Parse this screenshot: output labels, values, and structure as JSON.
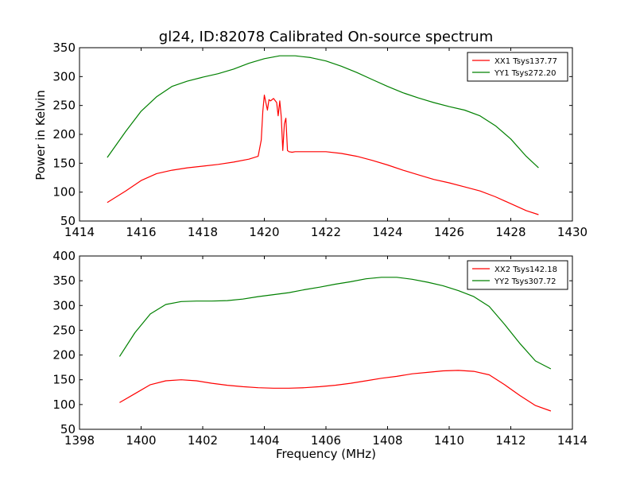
{
  "title": "gl24, ID:82078 Calibrated On-source spectrum",
  "xlabel": "Frequency (MHz)",
  "ylabel": "Power in Kelvin",
  "chart_data": [
    {
      "type": "line",
      "xlim": [
        1414,
        1430
      ],
      "ylim": [
        50,
        350
      ],
      "xticks": [
        1414,
        1416,
        1418,
        1420,
        1422,
        1424,
        1426,
        1428,
        1430
      ],
      "yticks": [
        50,
        100,
        150,
        200,
        250,
        300,
        350
      ],
      "legend_position": "top-right",
      "series": [
        {
          "name": "XX1 Tsys137.77",
          "color": "#ff0000",
          "x": [
            1414.9,
            1415.5,
            1416.0,
            1416.5,
            1417.0,
            1417.5,
            1418.0,
            1418.5,
            1419.0,
            1419.5,
            1419.8,
            1419.9,
            1419.95,
            1420.0,
            1420.05,
            1420.1,
            1420.15,
            1420.2,
            1420.3,
            1420.4,
            1420.45,
            1420.5,
            1420.55,
            1420.6,
            1420.65,
            1420.7,
            1420.75,
            1420.8,
            1420.9,
            1421.0,
            1421.5,
            1422.0,
            1422.5,
            1423.0,
            1423.5,
            1424.0,
            1424.5,
            1425.0,
            1425.5,
            1426.0,
            1426.5,
            1427.0,
            1427.5,
            1428.0,
            1428.5,
            1428.9
          ],
          "y": [
            82,
            102,
            120,
            132,
            138,
            142,
            145,
            148,
            152,
            157,
            162,
            190,
            240,
            268,
            255,
            242,
            260,
            258,
            262,
            255,
            232,
            258,
            230,
            172,
            218,
            228,
            172,
            170,
            169,
            170,
            170,
            170,
            167,
            162,
            155,
            147,
            138,
            130,
            122,
            116,
            109,
            102,
            92,
            80,
            68,
            61
          ]
        },
        {
          "name": "YY1 Tsys272.20",
          "color": "#008000",
          "x": [
            1414.9,
            1415.5,
            1416.0,
            1416.5,
            1417.0,
            1417.5,
            1418.0,
            1418.5,
            1419.0,
            1419.5,
            1420.0,
            1420.5,
            1421.0,
            1421.5,
            1422.0,
            1422.5,
            1423.0,
            1423.5,
            1424.0,
            1424.5,
            1425.0,
            1425.5,
            1426.0,
            1426.5,
            1427.0,
            1427.5,
            1428.0,
            1428.5,
            1428.9
          ],
          "y": [
            160,
            205,
            240,
            265,
            283,
            292,
            299,
            305,
            313,
            323,
            331,
            336,
            336,
            333,
            327,
            318,
            307,
            295,
            283,
            272,
            263,
            255,
            248,
            242,
            232,
            215,
            192,
            162,
            142
          ]
        }
      ]
    },
    {
      "type": "line",
      "xlim": [
        1398,
        1414
      ],
      "ylim": [
        50,
        400
      ],
      "xticks": [
        1398,
        1400,
        1402,
        1404,
        1406,
        1408,
        1410,
        1412,
        1414
      ],
      "yticks": [
        50,
        100,
        150,
        200,
        250,
        300,
        350,
        400
      ],
      "legend_position": "top-right",
      "series": [
        {
          "name": "XX2 Tsys142.18",
          "color": "#ff0000",
          "x": [
            1399.3,
            1399.8,
            1400.3,
            1400.8,
            1401.3,
            1401.8,
            1402.3,
            1402.8,
            1403.3,
            1403.8,
            1404.3,
            1404.8,
            1405.3,
            1405.8,
            1406.3,
            1406.8,
            1407.3,
            1407.8,
            1408.3,
            1408.8,
            1409.3,
            1409.8,
            1410.3,
            1410.8,
            1411.3,
            1411.8,
            1412.3,
            1412.8,
            1413.3
          ],
          "y": [
            104,
            122,
            140,
            148,
            150,
            148,
            143,
            139,
            136,
            134,
            133,
            133,
            134,
            136,
            139,
            143,
            148,
            153,
            157,
            162,
            165,
            168,
            169,
            167,
            160,
            140,
            118,
            98,
            87
          ]
        },
        {
          "name": "YY2 Tsys307.72",
          "color": "#008000",
          "x": [
            1399.3,
            1399.8,
            1400.3,
            1400.8,
            1401.3,
            1401.8,
            1402.3,
            1402.8,
            1403.3,
            1403.8,
            1404.3,
            1404.8,
            1405.3,
            1405.8,
            1406.3,
            1406.8,
            1407.3,
            1407.8,
            1408.3,
            1408.8,
            1409.3,
            1409.8,
            1410.3,
            1410.8,
            1411.3,
            1411.8,
            1412.3,
            1412.8,
            1413.3
          ],
          "y": [
            197,
            245,
            283,
            302,
            308,
            309,
            309,
            310,
            313,
            318,
            322,
            326,
            332,
            337,
            343,
            348,
            354,
            357,
            357,
            353,
            347,
            340,
            330,
            318,
            298,
            262,
            223,
            188,
            172
          ]
        }
      ]
    }
  ]
}
